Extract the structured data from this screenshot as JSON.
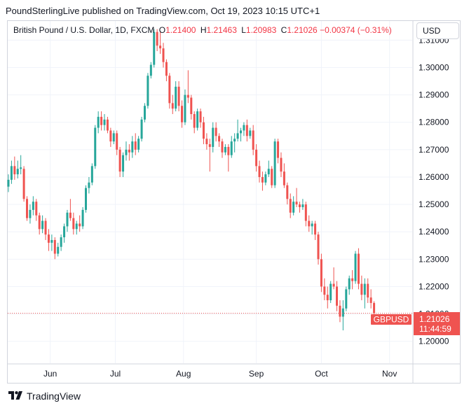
{
  "header": {
    "publisher_line": "PoundSterlingLive published on TradingView.com, Oct 19, 2023 10:15 UTC+1"
  },
  "legend": {
    "title": "British Pound / U.S. Dollar, 1D, FXCM",
    "open_label": "O",
    "open": "1.21400",
    "high_label": "H",
    "high": "1.21463",
    "low_label": "L",
    "low": "1.20983",
    "close_label": "C",
    "close": "1.21026",
    "change": "−0.00374 (−0.31%)"
  },
  "currency_button": "USD",
  "price_label": {
    "symbol": "GBPUSD",
    "price": "1.21026",
    "countdown": "11:44:59"
  },
  "footer": {
    "brand": "TradingView"
  },
  "colors": {
    "up": "#26a69a",
    "down": "#ef5350",
    "grid": "#f0f3fa",
    "border": "#d1d4dc"
  },
  "chart_data": {
    "type": "candlestick",
    "title": "British Pound / U.S. Dollar, 1D, FXCM",
    "ylim": [
      1.192,
      1.317
    ],
    "y_ticks": [
      "1.31000",
      "1.30000",
      "1.29000",
      "1.28000",
      "1.27000",
      "1.26000",
      "1.25000",
      "1.24000",
      "1.23000",
      "1.22000",
      "1.21000",
      "1.20000"
    ],
    "x_ticks": [
      {
        "label": "Jun",
        "index": 13.5
      },
      {
        "label": "Jul",
        "index": 34.5
      },
      {
        "label": "Aug",
        "index": 56.5
      },
      {
        "label": "Sep",
        "index": 80.0
      },
      {
        "label": "Oct",
        "index": 101.0
      },
      {
        "label": "Nov",
        "index": 123.0
      }
    ],
    "last_close": 1.21026,
    "ohlc": [
      {
        "o": 1.2565,
        "h": 1.261,
        "l": 1.2545,
        "c": 1.259
      },
      {
        "o": 1.259,
        "h": 1.266,
        "l": 1.2575,
        "c": 1.264
      },
      {
        "o": 1.264,
        "h": 1.2675,
        "l": 1.259,
        "c": 1.261
      },
      {
        "o": 1.261,
        "h": 1.266,
        "l": 1.2595,
        "c": 1.263
      },
      {
        "o": 1.263,
        "h": 1.268,
        "l": 1.261,
        "c": 1.2635
      },
      {
        "o": 1.263,
        "h": 1.264,
        "l": 1.251,
        "c": 1.252
      },
      {
        "o": 1.252,
        "h": 1.253,
        "l": 1.244,
        "c": 1.245
      },
      {
        "o": 1.245,
        "h": 1.25,
        "l": 1.243,
        "c": 1.248
      },
      {
        "o": 1.248,
        "h": 1.253,
        "l": 1.246,
        "c": 1.251
      },
      {
        "o": 1.251,
        "h": 1.252,
        "l": 1.244,
        "c": 1.246
      },
      {
        "o": 1.246,
        "h": 1.247,
        "l": 1.239,
        "c": 1.241
      },
      {
        "o": 1.241,
        "h": 1.246,
        "l": 1.2395,
        "c": 1.244
      },
      {
        "o": 1.244,
        "h": 1.245,
        "l": 1.237,
        "c": 1.239
      },
      {
        "o": 1.239,
        "h": 1.241,
        "l": 1.233,
        "c": 1.236
      },
      {
        "o": 1.236,
        "h": 1.239,
        "l": 1.233,
        "c": 1.237
      },
      {
        "o": 1.237,
        "h": 1.238,
        "l": 1.23,
        "c": 1.232
      },
      {
        "o": 1.232,
        "h": 1.236,
        "l": 1.231,
        "c": 1.2345
      },
      {
        "o": 1.2345,
        "h": 1.239,
        "l": 1.233,
        "c": 1.238
      },
      {
        "o": 1.238,
        "h": 1.243,
        "l": 1.236,
        "c": 1.242
      },
      {
        "o": 1.242,
        "h": 1.248,
        "l": 1.24,
        "c": 1.247
      },
      {
        "o": 1.247,
        "h": 1.252,
        "l": 1.244,
        "c": 1.245
      },
      {
        "o": 1.245,
        "h": 1.247,
        "l": 1.239,
        "c": 1.241
      },
      {
        "o": 1.241,
        "h": 1.244,
        "l": 1.239,
        "c": 1.243
      },
      {
        "o": 1.243,
        "h": 1.246,
        "l": 1.24,
        "c": 1.242
      },
      {
        "o": 1.242,
        "h": 1.249,
        "l": 1.241,
        "c": 1.248
      },
      {
        "o": 1.248,
        "h": 1.257,
        "l": 1.247,
        "c": 1.256
      },
      {
        "o": 1.256,
        "h": 1.26,
        "l": 1.254,
        "c": 1.258
      },
      {
        "o": 1.258,
        "h": 1.265,
        "l": 1.257,
        "c": 1.264
      },
      {
        "o": 1.264,
        "h": 1.279,
        "l": 1.263,
        "c": 1.278
      },
      {
        "o": 1.278,
        "h": 1.284,
        "l": 1.276,
        "c": 1.282
      },
      {
        "o": 1.282,
        "h": 1.284,
        "l": 1.277,
        "c": 1.279
      },
      {
        "o": 1.279,
        "h": 1.283,
        "l": 1.277,
        "c": 1.281
      },
      {
        "o": 1.281,
        "h": 1.282,
        "l": 1.276,
        "c": 1.277
      },
      {
        "o": 1.277,
        "h": 1.278,
        "l": 1.271,
        "c": 1.273
      },
      {
        "o": 1.273,
        "h": 1.277,
        "l": 1.272,
        "c": 1.276
      },
      {
        "o": 1.276,
        "h": 1.277,
        "l": 1.268,
        "c": 1.27
      },
      {
        "o": 1.27,
        "h": 1.271,
        "l": 1.26,
        "c": 1.262
      },
      {
        "o": 1.262,
        "h": 1.269,
        "l": 1.26,
        "c": 1.268
      },
      {
        "o": 1.268,
        "h": 1.273,
        "l": 1.266,
        "c": 1.27
      },
      {
        "o": 1.27,
        "h": 1.272,
        "l": 1.266,
        "c": 1.269
      },
      {
        "o": 1.269,
        "h": 1.275,
        "l": 1.267,
        "c": 1.273
      },
      {
        "o": 1.273,
        "h": 1.276,
        "l": 1.268,
        "c": 1.27
      },
      {
        "o": 1.27,
        "h": 1.275,
        "l": 1.269,
        "c": 1.274
      },
      {
        "o": 1.274,
        "h": 1.282,
        "l": 1.273,
        "c": 1.281
      },
      {
        "o": 1.281,
        "h": 1.287,
        "l": 1.28,
        "c": 1.286
      },
      {
        "o": 1.286,
        "h": 1.298,
        "l": 1.285,
        "c": 1.297
      },
      {
        "o": 1.297,
        "h": 1.302,
        "l": 1.296,
        "c": 1.301
      },
      {
        "o": 1.301,
        "h": 1.314,
        "l": 1.3,
        "c": 1.313
      },
      {
        "o": 1.313,
        "h": 1.314,
        "l": 1.306,
        "c": 1.308
      },
      {
        "o": 1.308,
        "h": 1.313,
        "l": 1.305,
        "c": 1.307
      },
      {
        "o": 1.307,
        "h": 1.309,
        "l": 1.3,
        "c": 1.302
      },
      {
        "o": 1.302,
        "h": 1.303,
        "l": 1.295,
        "c": 1.297
      },
      {
        "o": 1.297,
        "h": 1.298,
        "l": 1.285,
        "c": 1.287
      },
      {
        "o": 1.287,
        "h": 1.29,
        "l": 1.283,
        "c": 1.285
      },
      {
        "o": 1.285,
        "h": 1.295,
        "l": 1.284,
        "c": 1.293
      },
      {
        "o": 1.293,
        "h": 1.295,
        "l": 1.284,
        "c": 1.286
      },
      {
        "o": 1.286,
        "h": 1.288,
        "l": 1.278,
        "c": 1.28
      },
      {
        "o": 1.28,
        "h": 1.292,
        "l": 1.279,
        "c": 1.29
      },
      {
        "o": 1.29,
        "h": 1.299,
        "l": 1.287,
        "c": 1.289
      },
      {
        "o": 1.289,
        "h": 1.29,
        "l": 1.281,
        "c": 1.283
      },
      {
        "o": 1.283,
        "h": 1.284,
        "l": 1.276,
        "c": 1.278
      },
      {
        "o": 1.278,
        "h": 1.285,
        "l": 1.277,
        "c": 1.284
      },
      {
        "o": 1.284,
        "h": 1.285,
        "l": 1.278,
        "c": 1.28
      },
      {
        "o": 1.28,
        "h": 1.282,
        "l": 1.272,
        "c": 1.274
      },
      {
        "o": 1.274,
        "h": 1.276,
        "l": 1.27,
        "c": 1.272
      },
      {
        "o": 1.272,
        "h": 1.274,
        "l": 1.262,
        "c": 1.271
      },
      {
        "o": 1.271,
        "h": 1.28,
        "l": 1.269,
        "c": 1.278
      },
      {
        "o": 1.278,
        "h": 1.28,
        "l": 1.273,
        "c": 1.275
      },
      {
        "o": 1.275,
        "h": 1.276,
        "l": 1.271,
        "c": 1.273
      },
      {
        "o": 1.273,
        "h": 1.274,
        "l": 1.267,
        "c": 1.269
      },
      {
        "o": 1.269,
        "h": 1.272,
        "l": 1.268,
        "c": 1.271
      },
      {
        "o": 1.271,
        "h": 1.272,
        "l": 1.262,
        "c": 1.268
      },
      {
        "o": 1.268,
        "h": 1.275,
        "l": 1.267,
        "c": 1.273
      },
      {
        "o": 1.273,
        "h": 1.276,
        "l": 1.269,
        "c": 1.274
      },
      {
        "o": 1.274,
        "h": 1.281,
        "l": 1.273,
        "c": 1.276
      },
      {
        "o": 1.276,
        "h": 1.278,
        "l": 1.273,
        "c": 1.277
      },
      {
        "o": 1.277,
        "h": 1.28,
        "l": 1.275,
        "c": 1.279
      },
      {
        "o": 1.279,
        "h": 1.281,
        "l": 1.273,
        "c": 1.275
      },
      {
        "o": 1.275,
        "h": 1.278,
        "l": 1.274,
        "c": 1.277
      },
      {
        "o": 1.277,
        "h": 1.279,
        "l": 1.268,
        "c": 1.27
      },
      {
        "o": 1.27,
        "h": 1.272,
        "l": 1.262,
        "c": 1.264
      },
      {
        "o": 1.264,
        "h": 1.266,
        "l": 1.258,
        "c": 1.26
      },
      {
        "o": 1.26,
        "h": 1.262,
        "l": 1.255,
        "c": 1.258
      },
      {
        "o": 1.258,
        "h": 1.262,
        "l": 1.257,
        "c": 1.261
      },
      {
        "o": 1.261,
        "h": 1.266,
        "l": 1.26,
        "c": 1.263
      },
      {
        "o": 1.263,
        "h": 1.264,
        "l": 1.256,
        "c": 1.257
      },
      {
        "o": 1.257,
        "h": 1.274,
        "l": 1.256,
        "c": 1.273
      },
      {
        "o": 1.273,
        "h": 1.274,
        "l": 1.265,
        "c": 1.267
      },
      {
        "o": 1.267,
        "h": 1.269,
        "l": 1.26,
        "c": 1.262
      },
      {
        "o": 1.262,
        "h": 1.265,
        "l": 1.256,
        "c": 1.257
      },
      {
        "o": 1.257,
        "h": 1.258,
        "l": 1.25,
        "c": 1.252
      },
      {
        "o": 1.252,
        "h": 1.254,
        "l": 1.245,
        "c": 1.247
      },
      {
        "o": 1.247,
        "h": 1.253,
        "l": 1.246,
        "c": 1.251
      },
      {
        "o": 1.251,
        "h": 1.256,
        "l": 1.249,
        "c": 1.25
      },
      {
        "o": 1.25,
        "h": 1.251,
        "l": 1.247,
        "c": 1.249
      },
      {
        "o": 1.249,
        "h": 1.252,
        "l": 1.248,
        "c": 1.25
      },
      {
        "o": 1.25,
        "h": 1.251,
        "l": 1.242,
        "c": 1.244
      },
      {
        "o": 1.244,
        "h": 1.246,
        "l": 1.24,
        "c": 1.242
      },
      {
        "o": 1.242,
        "h": 1.244,
        "l": 1.239,
        "c": 1.243
      },
      {
        "o": 1.243,
        "h": 1.244,
        "l": 1.237,
        "c": 1.239
      },
      {
        "o": 1.239,
        "h": 1.24,
        "l": 1.228,
        "c": 1.23
      },
      {
        "o": 1.23,
        "h": 1.232,
        "l": 1.218,
        "c": 1.22
      },
      {
        "o": 1.22,
        "h": 1.223,
        "l": 1.215,
        "c": 1.217
      },
      {
        "o": 1.217,
        "h": 1.22,
        "l": 1.212,
        "c": 1.215
      },
      {
        "o": 1.215,
        "h": 1.222,
        "l": 1.214,
        "c": 1.221
      },
      {
        "o": 1.221,
        "h": 1.227,
        "l": 1.219,
        "c": 1.22
      },
      {
        "o": 1.22,
        "h": 1.222,
        "l": 1.211,
        "c": 1.213
      },
      {
        "o": 1.213,
        "h": 1.215,
        "l": 1.207,
        "c": 1.209
      },
      {
        "o": 1.209,
        "h": 1.215,
        "l": 1.204,
        "c": 1.212
      },
      {
        "o": 1.212,
        "h": 1.22,
        "l": 1.211,
        "c": 1.219
      },
      {
        "o": 1.219,
        "h": 1.224,
        "l": 1.217,
        "c": 1.223
      },
      {
        "o": 1.223,
        "h": 1.226,
        "l": 1.219,
        "c": 1.222
      },
      {
        "o": 1.222,
        "h": 1.233,
        "l": 1.221,
        "c": 1.232
      },
      {
        "o": 1.232,
        "h": 1.234,
        "l": 1.219,
        "c": 1.221
      },
      {
        "o": 1.221,
        "h": 1.224,
        "l": 1.215,
        "c": 1.217
      },
      {
        "o": 1.217,
        "h": 1.223,
        "l": 1.212,
        "c": 1.221
      },
      {
        "o": 1.221,
        "h": 1.223,
        "l": 1.214,
        "c": 1.216
      },
      {
        "o": 1.216,
        "h": 1.219,
        "l": 1.212,
        "c": 1.214
      },
      {
        "o": 1.214,
        "h": 1.21463,
        "l": 1.20983,
        "c": 1.21026
      }
    ]
  }
}
